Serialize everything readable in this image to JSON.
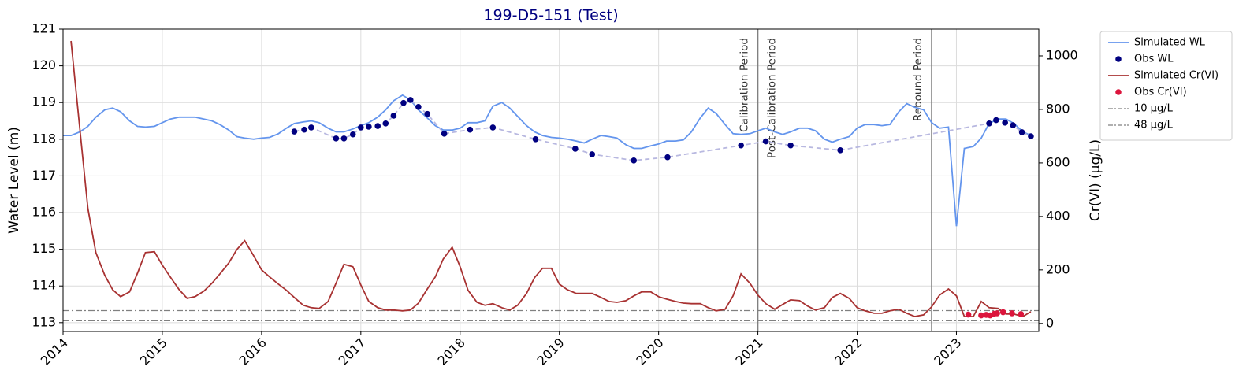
{
  "chart_data": {
    "type": "line",
    "title": "199-D5-151 (Test)",
    "ylabel": "Water Level (m)",
    "y2label": "Cr(VI) (µg/L)",
    "xlim": [
      2014,
      2023.83
    ],
    "xticks": [
      2014,
      2015,
      2016,
      2017,
      2018,
      2019,
      2020,
      2021,
      2022,
      2023
    ],
    "ylim": [
      112.76,
      121
    ],
    "yticks": [
      113,
      114,
      115,
      116,
      117,
      118,
      119,
      120,
      121
    ],
    "y2lim": [
      -30,
      1100
    ],
    "y2ticks": [
      0,
      200,
      400,
      600,
      800,
      1000
    ],
    "grid": true,
    "legend": "outside right",
    "x": [
      2014.0,
      2014.08,
      2014.17,
      2014.25,
      2014.33,
      2014.42,
      2014.5,
      2014.58,
      2014.67,
      2014.75,
      2014.83,
      2014.92,
      2015.0,
      2015.08,
      2015.17,
      2015.25,
      2015.33,
      2015.42,
      2015.5,
      2015.58,
      2015.67,
      2015.75,
      2015.83,
      2015.92,
      2016.0,
      2016.08,
      2016.17,
      2016.25,
      2016.33,
      2016.42,
      2016.5,
      2016.58,
      2016.67,
      2016.75,
      2016.83,
      2016.92,
      2017.0,
      2017.08,
      2017.17,
      2017.25,
      2017.33,
      2017.42,
      2017.5,
      2017.58,
      2017.67,
      2017.75,
      2017.83,
      2017.92,
      2018.0,
      2018.08,
      2018.17,
      2018.25,
      2018.33,
      2018.42,
      2018.5,
      2018.58,
      2018.67,
      2018.75,
      2018.83,
      2018.92,
      2019.0,
      2019.08,
      2019.17,
      2019.25,
      2019.33,
      2019.42,
      2019.5,
      2019.58,
      2019.67,
      2019.75,
      2019.83,
      2019.92,
      2020.0,
      2020.08,
      2020.17,
      2020.25,
      2020.33,
      2020.42,
      2020.5,
      2020.58,
      2020.67,
      2020.75,
      2020.83,
      2020.92,
      2021.0,
      2021.08,
      2021.17,
      2021.25,
      2021.33,
      2021.42,
      2021.5,
      2021.58,
      2021.67,
      2021.75,
      2021.83,
      2021.92,
      2022.0,
      2022.08,
      2022.17,
      2022.25,
      2022.33,
      2022.42,
      2022.5,
      2022.58,
      2022.67,
      2022.75,
      2022.83,
      2022.92,
      2023.0,
      2023.08,
      2023.17,
      2023.25,
      2023.33,
      2023.42,
      2023.5,
      2023.58,
      2023.67,
      2023.75
    ],
    "series": [
      {
        "name": "Simulated WL",
        "color": "#6495ed",
        "style": "line",
        "axis": "y",
        "values": [
          118.1,
          118.1,
          118.2,
          118.35,
          118.6,
          118.8,
          118.85,
          118.75,
          118.5,
          118.35,
          118.33,
          118.35,
          118.45,
          118.55,
          118.6,
          118.6,
          118.6,
          118.55,
          118.5,
          118.4,
          118.25,
          118.07,
          118.03,
          118.0,
          118.03,
          118.05,
          118.15,
          118.3,
          118.43,
          118.47,
          118.5,
          118.45,
          118.3,
          118.2,
          118.2,
          118.28,
          118.37,
          118.45,
          118.6,
          118.8,
          119.05,
          119.2,
          119.07,
          118.8,
          118.58,
          118.37,
          118.25,
          118.25,
          118.3,
          118.45,
          118.45,
          118.5,
          118.9,
          119.0,
          118.85,
          118.62,
          118.37,
          118.2,
          118.1,
          118.05,
          118.03,
          118.0,
          117.95,
          117.9,
          118.0,
          118.1,
          118.07,
          118.03,
          117.85,
          117.75,
          117.75,
          117.82,
          117.87,
          117.95,
          117.95,
          117.98,
          118.2,
          118.58,
          118.85,
          118.7,
          118.4,
          118.15,
          118.13,
          118.15,
          118.23,
          118.3,
          118.2,
          118.13,
          118.2,
          118.3,
          118.3,
          118.23,
          118.0,
          117.92,
          118.0,
          118.07,
          118.3,
          118.4,
          118.4,
          118.37,
          118.4,
          118.75,
          118.97,
          118.87,
          118.8,
          118.45,
          118.3,
          118.33,
          115.63,
          117.75,
          117.8,
          118.03,
          118.43,
          118.55,
          118.55,
          118.43,
          118.2,
          118.1
        ]
      },
      {
        "name": "Obs WL",
        "color": "#000080",
        "style": "scatter",
        "axis": "y",
        "connect_color": "#b8b8e0",
        "x": [
          2016.33,
          2016.43,
          2016.5,
          2016.75,
          2016.83,
          2016.92,
          2017.0,
          2017.08,
          2017.17,
          2017.25,
          2017.33,
          2017.43,
          2017.5,
          2017.58,
          2017.67,
          2017.84,
          2018.1,
          2018.33,
          2018.76,
          2019.16,
          2019.33,
          2019.75,
          2020.09,
          2020.83,
          2021.08,
          2021.33,
          2021.83,
          2023.33,
          2023.4,
          2023.49,
          2023.57,
          2023.66,
          2023.75
        ],
        "values": [
          118.21,
          118.26,
          118.32,
          118.02,
          118.02,
          118.13,
          118.32,
          118.34,
          118.36,
          118.43,
          118.64,
          118.99,
          119.07,
          118.88,
          118.69,
          118.15,
          118.26,
          118.32,
          118.0,
          117.74,
          117.59,
          117.42,
          117.51,
          117.83,
          117.94,
          117.83,
          117.7,
          118.43,
          118.52,
          118.45,
          118.38,
          118.19,
          118.08
        ]
      },
      {
        "name": "Simulated Cr(VI)",
        "color": "#a83232",
        "style": "line",
        "axis": "y2",
        "values": [
          null,
          1056,
          724,
          430,
          265,
          180,
          126,
          100,
          118,
          188,
          265,
          268,
          218,
          174,
          126,
          94,
          100,
          121,
          150,
          185,
          226,
          276,
          309,
          253,
          200,
          174,
          147,
          124,
          97,
          68,
          59,
          56,
          82,
          150,
          221,
          212,
          144,
          82,
          59,
          50,
          50,
          47,
          50,
          76,
          129,
          174,
          241,
          285,
          212,
          124,
          79,
          68,
          74,
          59,
          50,
          68,
          112,
          171,
          206,
          206,
          147,
          126,
          112,
          112,
          112,
          97,
          82,
          79,
          85,
          103,
          118,
          118,
          100,
          91,
          82,
          76,
          74,
          74,
          59,
          47,
          53,
          103,
          185,
          150,
          106,
          74,
          53,
          71,
          88,
          85,
          65,
          50,
          59,
          97,
          112,
          94,
          59,
          47,
          38,
          38,
          47,
          53,
          38,
          26,
          32,
          62,
          106,
          129,
          103,
          26,
          26,
          82,
          59,
          56,
          35,
          35,
          26,
          44
        ]
      },
      {
        "name": "Obs Cr(VI)",
        "color": "#dc143c",
        "style": "scatter",
        "axis": "y2",
        "x": [
          2023.12,
          2023.25,
          2023.3,
          2023.34,
          2023.38,
          2023.41,
          2023.47,
          2023.56,
          2023.65
        ],
        "values": [
          33,
          30,
          32,
          30,
          36,
          38,
          42,
          38,
          35
        ]
      }
    ],
    "thresholds": [
      {
        "name": "10 µg/L",
        "value": 10,
        "color": "#808080",
        "axis": "y2"
      },
      {
        "name": "48 µg/L",
        "value": 48,
        "color": "#808080",
        "axis": "y2"
      }
    ],
    "vlines": [
      {
        "x": 2021.0,
        "color": "#808080",
        "labels": [
          {
            "text": "Calibration Period",
            "side": "left"
          },
          {
            "text": "Post-Calibration Period",
            "side": "right"
          }
        ]
      },
      {
        "x": 2022.75,
        "color": "#808080",
        "labels": [
          {
            "text": "Rebound Period",
            "side": "left"
          }
        ]
      }
    ]
  }
}
